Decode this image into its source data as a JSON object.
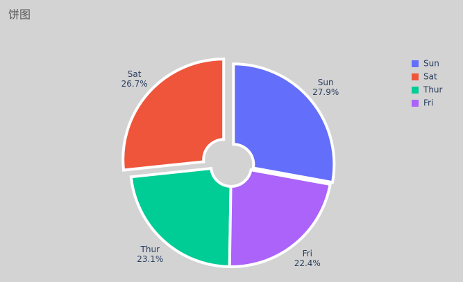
{
  "chart_data": {
    "type": "pie",
    "title": "饼图",
    "categories": [
      "Sun",
      "Sat",
      "Thur",
      "Fri"
    ],
    "values": [
      27.9,
      26.7,
      23.1,
      22.4
    ],
    "value_labels": [
      "27.9%",
      "26.7%",
      "23.1%",
      "22.4%"
    ],
    "colors": [
      "#636efa",
      "#ef553b",
      "#00cc96",
      "#ab63fa"
    ],
    "hole": 0.2,
    "pull": [
      0.03,
      0.1,
      0,
      0
    ],
    "direction": "counterclockwise",
    "legend": "top-right"
  }
}
